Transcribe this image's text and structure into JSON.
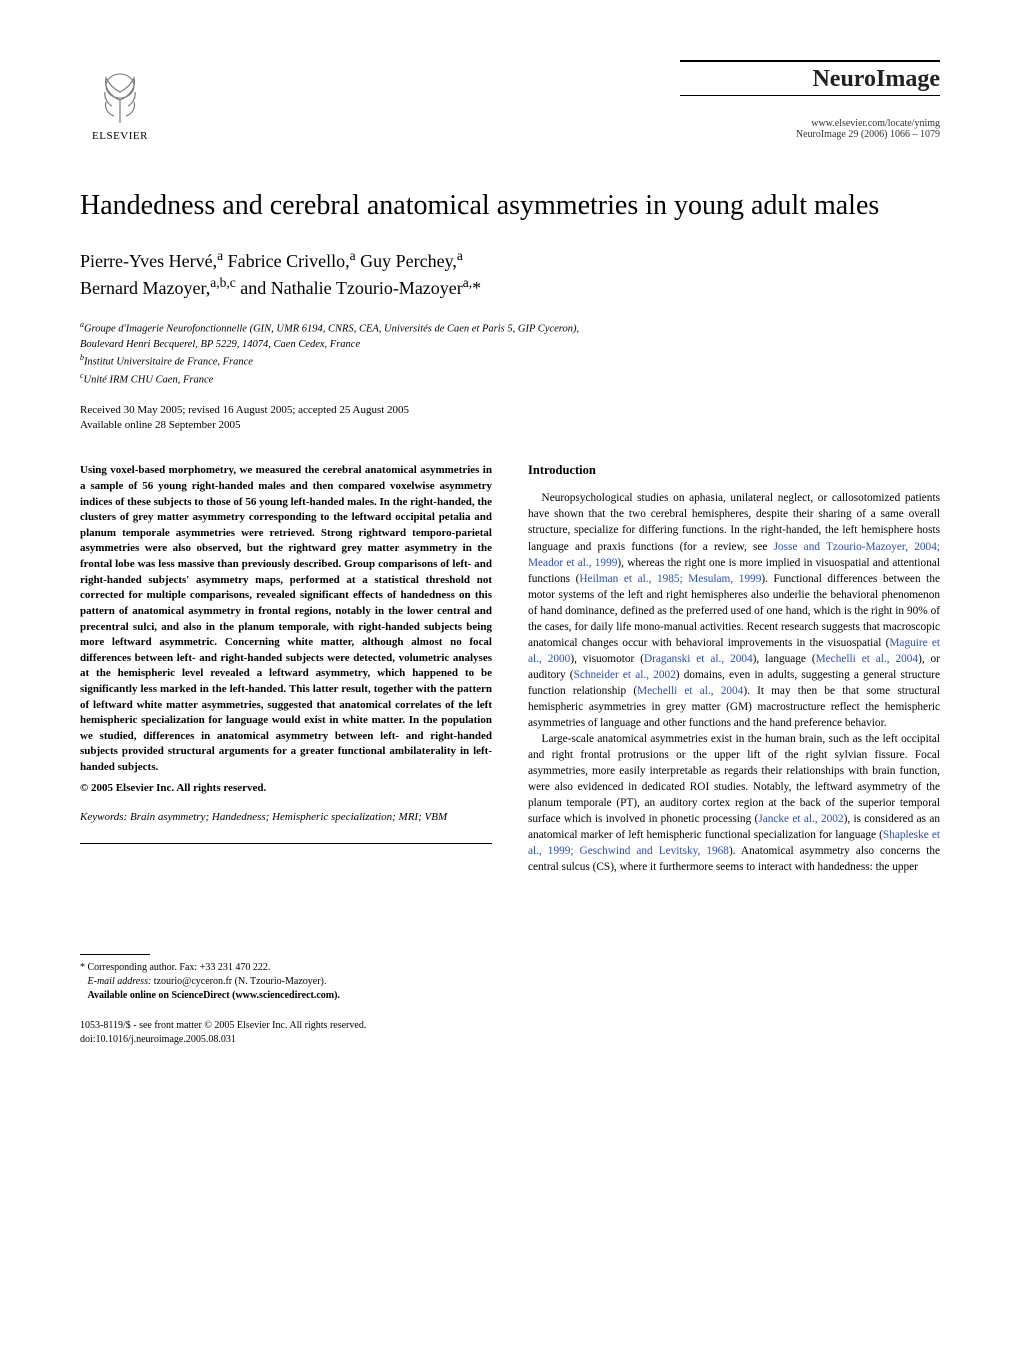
{
  "header": {
    "publisher": "ELSEVIER",
    "journal_name": "NeuroImage",
    "journal_url": "www.elsevier.com/locate/ynimg",
    "journal_citation": "NeuroImage 29 (2006) 1066 – 1079"
  },
  "title": "Handedness and cerebral anatomical asymmetries in young adult males",
  "authors_html": "Pierre-Yves Hervé,<sup>a</sup> Fabrice Crivello,<sup>a</sup> Guy Perchey,<sup>a</sup><br>Bernard Mazoyer,<sup>a,b,c</sup> and Nathalie Tzourio-Mazoyer<sup>a,</sup>*",
  "affiliations": [
    "<sup>a</sup>Groupe d'Imagerie Neurofonctionnelle (GIN, UMR 6194, CNRS, CEA, Universités de Caen et Paris 5, GIP Cyceron),",
    "Boulevard Henri Becquerel, BP 5229, 14074, Caen Cedex, France",
    "<sup>b</sup>Institut Universitaire de France, France",
    "<sup>c</sup>Unité IRM CHU Caen, France"
  ],
  "dates": {
    "received": "Received 30 May 2005; revised 16 August 2005; accepted 25 August 2005",
    "online": "Available online 28 September 2005"
  },
  "abstract": "Using voxel-based morphometry, we measured the cerebral anatomical asymmetries in a sample of 56 young right-handed males and then compared voxelwise asymmetry indices of these subjects to those of 56 young left-handed males. In the right-handed, the clusters of grey matter asymmetry corresponding to the leftward occipital petalia and planum temporale asymmetries were retrieved. Strong rightward temporo-parietal asymmetries were also observed, but the rightward grey matter asymmetry in the frontal lobe was less massive than previously described. Group comparisons of left- and right-handed subjects' asymmetry maps, performed at a statistical threshold not corrected for multiple comparisons, revealed significant effects of handedness on this pattern of anatomical asymmetry in frontal regions, notably in the lower central and precentral sulci, and also in the planum temporale, with right-handed subjects being more leftward asymmetric. Concerning white matter, although almost no focal differences between left- and right-handed subjects were detected, volumetric analyses at the hemispheric level revealed a leftward asymmetry, which happened to be significantly less marked in the left-handed. This latter result, together with the pattern of leftward white matter asymmetries, suggested that anatomical correlates of the left hemispheric specialization for language would exist in white matter. In the population we studied, differences in anatomical asymmetry between left- and right-handed subjects provided structural arguments for a greater functional ambilaterality in left-handed subjects.",
  "copyright": "© 2005 Elsevier Inc. All rights reserved.",
  "keywords": {
    "label": "Keywords:",
    "text": " Brain asymmetry; Handedness; Hemispheric specialization; MRI; VBM"
  },
  "intro": {
    "heading": "Introduction",
    "p1": "Neuropsychological studies on aphasia, unilateral neglect, or callosotomized patients have shown that the two cerebral hemispheres, despite their sharing of a same overall structure, specialize for differing functions. In the right-handed, the left hemisphere hosts language and praxis functions (for a review, see <span class=\"blue-link\">Josse and Tzourio-Mazoyer, 2004; Meador et al., 1999</span>), whereas the right one is more implied in visuospatial and attentional functions (<span class=\"blue-link\">Heilman et al., 1985; Mesulam, 1999</span>). Functional differences between the motor systems of the left and right hemispheres also underlie the behavioral phenomenon of hand dominance, defined as the preferred used of one hand, which is the right in 90% of the cases, for daily life mono-manual activities. Recent research suggests that macroscopic anatomical changes occur with behavioral improvements in the visuospatial (<span class=\"blue-link\">Maguire et al., 2000</span>), visuomotor (<span class=\"blue-link\">Draganski et al., 2004</span>), language (<span class=\"blue-link\">Mechelli et al., 2004</span>), or auditory (<span class=\"blue-link\">Schneider et al., 2002</span>) domains, even in adults, suggesting a general structure function relationship (<span class=\"blue-link\">Mechelli et al., 2004</span>). It may then be that some structural hemispheric asymmetries in grey matter (GM) macrostructure reflect the hemispheric asymmetries of language and other functions and the hand preference behavior.",
    "p2": "Large-scale anatomical asymmetries exist in the human brain, such as the left occipital and right frontal protrusions or the upper lift of the right sylvian fissure. Focal asymmetries, more easily interpretable as regards their relationships with brain function, were also evidenced in dedicated ROI studies. Notably, the leftward asymmetry of the planum temporale (PT), an auditory cortex region at the back of the superior temporal surface which is involved in phonetic processing (<span class=\"blue-link\">Jancke et al., 2002</span>), is considered as an anatomical marker of left hemispheric functional specialization for language (<span class=\"blue-link\">Shapleske et al., 1999; Geschwind and Levitsky, 1968</span>). Anatomical asymmetry also concerns the central sulcus (CS), where it furthermore seems to interact with handedness: the upper"
  },
  "footnotes": {
    "corr": "* Corresponding author. Fax: +33 231 470 222.",
    "email_label": "E-mail address:",
    "email": " tzourio@cyceron.fr (N. Tzourio-Mazoyer).",
    "avail": "Available online on ScienceDirect (www.sciencedirect.com)."
  },
  "bottom": {
    "issn": "1053-8119/$ - see front matter © 2005 Elsevier Inc. All rights reserved.",
    "doi": "doi:10.1016/j.neuroimage.2005.08.031"
  }
}
